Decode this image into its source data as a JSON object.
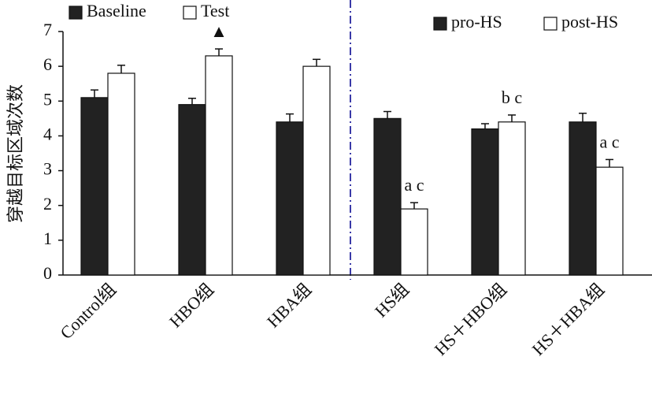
{
  "chart_data": {
    "type": "bar",
    "y_label": "穿越目标区域次数",
    "categories": [
      "Control组",
      "HBO组",
      "HBA组",
      "HS组",
      "HS＋HBO组",
      "HS＋HBA组"
    ],
    "series": [
      {
        "name": "Baseline",
        "color": "#222222",
        "values": [
          5.1,
          4.9,
          4.4,
          null,
          null,
          null
        ],
        "errors": [
          0.22,
          0.18,
          0.23,
          null,
          null,
          null
        ]
      },
      {
        "name": "Test",
        "color": "#ffffff",
        "values": [
          5.8,
          6.3,
          6.0,
          null,
          null,
          null
        ],
        "errors": [
          0.23,
          0.2,
          0.2,
          null,
          null,
          null
        ]
      },
      {
        "name": "pro-HS",
        "color": "#222222",
        "values": [
          null,
          null,
          null,
          4.5,
          4.2,
          4.4
        ],
        "errors": [
          null,
          null,
          null,
          0.2,
          0.15,
          0.25
        ]
      },
      {
        "name": "post-HS",
        "color": "#ffffff",
        "values": [
          null,
          null,
          null,
          1.9,
          4.4,
          3.1
        ],
        "errors": [
          null,
          null,
          null,
          0.18,
          0.2,
          0.22
        ]
      }
    ],
    "annotations": [
      {
        "text": "▲",
        "category": 1,
        "series": 1
      },
      {
        "text": "a c",
        "category": 3,
        "series": 3
      },
      {
        "text": "b c",
        "category": 4,
        "series": 3
      },
      {
        "text": "a c",
        "category": 5,
        "series": 3
      }
    ],
    "ylim": [
      0,
      7
    ],
    "yticks": [
      0,
      1,
      2,
      3,
      4,
      5,
      6,
      7
    ],
    "grid": false
  }
}
